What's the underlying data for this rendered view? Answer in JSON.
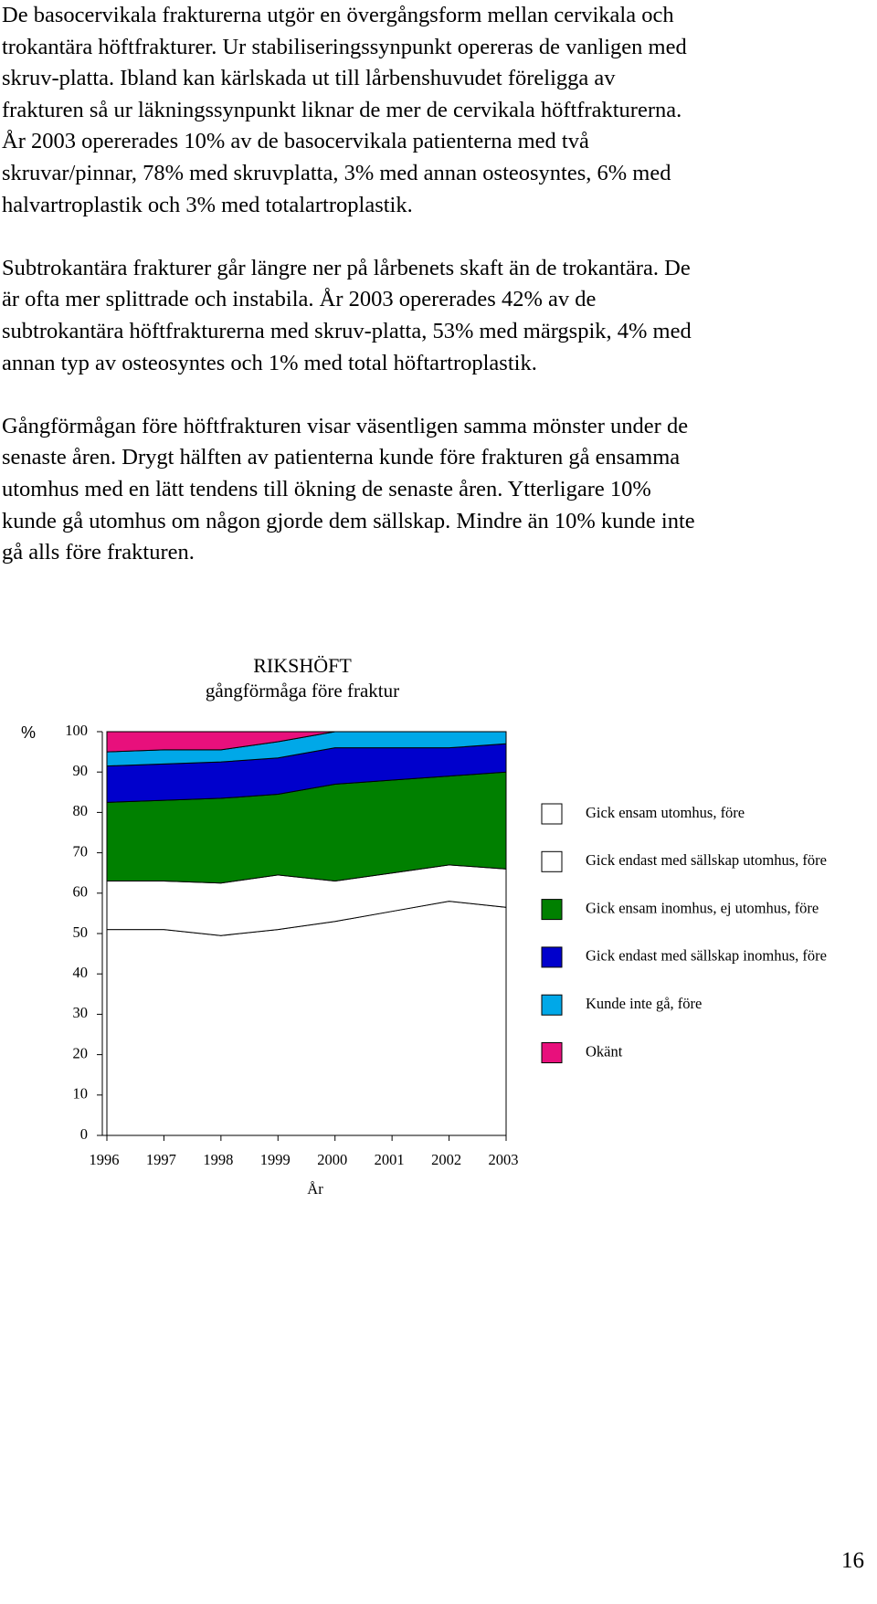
{
  "paragraphs": [
    [
      "De basocervikala frakturerna utgör en övergångsform mellan cervikala och",
      "trokantära höftfrakturer. Ur stabiliseringssynpunkt opereras de vanligen med",
      "skruv-platta. Ibland kan kärlskada ut till lårbenshuvudet föreligga av",
      "frakturen så ur läkningssynpunkt liknar de mer de cervikala höftfrakturerna.",
      "År 2003 opererades 10% av de basocervikala patienterna med två",
      "skruvar/pinnar, 78% med skruvplatta, 3% med annan osteosyntes, 6% med",
      "halvartroplastik och 3% med totalartroplastik."
    ],
    [
      "Subtrokantära frakturer går längre ner på lårbenets skaft än de trokantära. De",
      "är ofta mer splittrade och instabila. År 2003 opererades 42% av de",
      "subtrokantära höftfrakturerna med skruv-platta, 53% med märgspik, 4% med",
      "annan typ av osteosyntes och 1% med total höftartroplastik."
    ],
    [
      "Gångförmågan före höftfrakturen visar väsentligen samma mönster under de",
      "senaste åren. Drygt hälften av patienterna kunde före frakturen gå ensamma",
      "utomhus med en lätt tendens till ökning de senaste åren. Ytterligare 10%",
      "kunde gå utomhus om någon gjorde dem sällskap. Mindre än 10% kunde inte",
      "gå alls före frakturen."
    ]
  ],
  "chart_data": {
    "type": "stacked-area",
    "title": "RIKSHÖFT",
    "subtitle": "gångförmåga före fraktur",
    "ylabel": "%",
    "xlabel": "År",
    "categories": [
      "1996",
      "1997",
      "1998",
      "1999",
      "2000",
      "2001",
      "2002",
      "2003"
    ],
    "ylim": [
      0,
      100
    ],
    "yticks": [
      0,
      10,
      20,
      30,
      40,
      50,
      60,
      70,
      80,
      90,
      100
    ],
    "legend": "right",
    "series": [
      {
        "name": "Gick ensam utomhus, före",
        "color": "#ffffff",
        "values": [
          51,
          51,
          49.5,
          51,
          53,
          55.5,
          58,
          56.5
        ]
      },
      {
        "name": "Gick endast med sällskap utomhus, före",
        "color": "#ffffff",
        "values": [
          12,
          12,
          13,
          13.5,
          10,
          9.5,
          9,
          9.5
        ]
      },
      {
        "name": "Gick ensam inomhus, ej utomhus, före",
        "color": "#008000",
        "values": [
          19.5,
          20,
          21,
          20,
          24,
          23,
          22,
          24
        ]
      },
      {
        "name": "Gick endast med sällskap inomhus, före",
        "color": "#0000cc",
        "values": [
          9,
          9,
          9,
          9,
          9,
          8,
          7,
          7
        ]
      },
      {
        "name": "Kunde inte gå, före",
        "color": "#00a8e8",
        "values": [
          3.5,
          3.5,
          3,
          4,
          4,
          4,
          4,
          3
        ]
      },
      {
        "name": "Okänt",
        "color": "#e8107c",
        "values": [
          5,
          4.5,
          4.5,
          2.5,
          0,
          0,
          0,
          0
        ]
      }
    ]
  },
  "page_number": "16"
}
